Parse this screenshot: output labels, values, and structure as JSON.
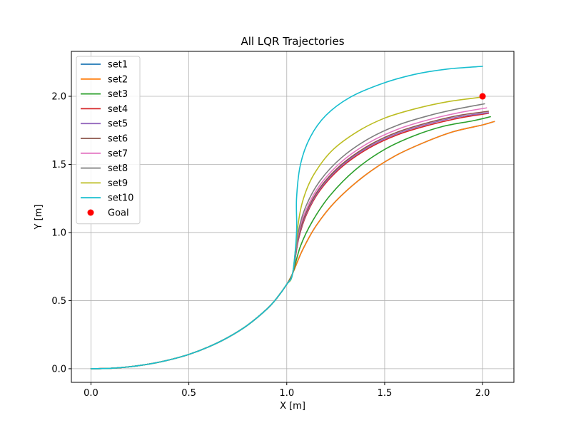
{
  "chart_data": {
    "type": "line",
    "title": "All LQR Trajectories",
    "xlabel": "X [m]",
    "ylabel": "Y [m]",
    "xlim": [
      -0.1,
      2.16
    ],
    "ylim": [
      -0.1,
      2.33
    ],
    "xticks": [
      0.0,
      0.5,
      1.0,
      1.5,
      2.0
    ],
    "xtick_labels": [
      "0.0",
      "0.5",
      "1.0",
      "1.5",
      "2.0"
    ],
    "yticks": [
      0.0,
      0.5,
      1.0,
      1.5,
      2.0
    ],
    "ytick_labels": [
      "0.0",
      "0.5",
      "1.0",
      "1.5",
      "2.0"
    ],
    "grid": true,
    "legend_position": "top-left",
    "common_path": {
      "x": [
        0.0,
        0.1,
        0.2,
        0.3,
        0.4,
        0.5,
        0.6,
        0.7,
        0.8,
        0.9,
        0.95,
        1.0
      ],
      "y": [
        0.0,
        0.003,
        0.015,
        0.035,
        0.065,
        0.105,
        0.16,
        0.23,
        0.32,
        0.44,
        0.52,
        0.62
      ]
    },
    "series": [
      {
        "name": "set1",
        "color": "#1f77b4",
        "x": [
          1.03,
          1.08,
          1.15,
          1.25,
          1.4,
          1.55,
          1.7,
          1.85,
          2.0,
          2.06
        ],
        "y": [
          0.7,
          0.87,
          1.05,
          1.23,
          1.42,
          1.56,
          1.66,
          1.74,
          1.79,
          1.815
        ]
      },
      {
        "name": "set2",
        "color": "#ff7f0e",
        "x": [
          1.03,
          1.08,
          1.15,
          1.25,
          1.4,
          1.55,
          1.7,
          1.85,
          2.0,
          2.06
        ],
        "y": [
          0.7,
          0.87,
          1.05,
          1.23,
          1.42,
          1.56,
          1.66,
          1.74,
          1.79,
          1.815
        ]
      },
      {
        "name": "set3",
        "color": "#2ca02c",
        "x": [
          1.03,
          1.07,
          1.13,
          1.22,
          1.35,
          1.5,
          1.65,
          1.8,
          1.95,
          2.04
        ],
        "y": [
          0.7,
          0.9,
          1.08,
          1.27,
          1.46,
          1.61,
          1.71,
          1.78,
          1.82,
          1.85
        ]
      },
      {
        "name": "set4",
        "color": "#d62728",
        "x": [
          1.03,
          1.06,
          1.1,
          1.17,
          1.28,
          1.42,
          1.57,
          1.73,
          1.88,
          2.03
        ],
        "y": [
          0.7,
          0.95,
          1.13,
          1.31,
          1.48,
          1.62,
          1.72,
          1.79,
          1.84,
          1.875
        ]
      },
      {
        "name": "set5",
        "color": "#9467bd",
        "x": [
          1.03,
          1.06,
          1.1,
          1.17,
          1.28,
          1.42,
          1.57,
          1.73,
          1.88,
          2.03
        ],
        "y": [
          0.7,
          0.96,
          1.14,
          1.32,
          1.49,
          1.63,
          1.73,
          1.8,
          1.85,
          1.88
        ]
      },
      {
        "name": "set6",
        "color": "#8c564b",
        "x": [
          1.03,
          1.06,
          1.1,
          1.17,
          1.28,
          1.42,
          1.57,
          1.73,
          1.88,
          2.03
        ],
        "y": [
          0.7,
          0.97,
          1.15,
          1.33,
          1.5,
          1.64,
          1.74,
          1.81,
          1.86,
          1.89
        ]
      },
      {
        "name": "set7",
        "color": "#e377c2",
        "x": [
          1.03,
          1.06,
          1.1,
          1.17,
          1.28,
          1.42,
          1.57,
          1.73,
          1.88,
          2.02
        ],
        "y": [
          0.7,
          0.99,
          1.17,
          1.35,
          1.52,
          1.66,
          1.76,
          1.83,
          1.88,
          1.915
        ]
      },
      {
        "name": "set8",
        "color": "#7f7f7f",
        "x": [
          1.03,
          1.06,
          1.1,
          1.17,
          1.28,
          1.42,
          1.57,
          1.73,
          1.88,
          2.01
        ],
        "y": [
          0.7,
          1.01,
          1.2,
          1.38,
          1.55,
          1.69,
          1.79,
          1.86,
          1.91,
          1.945
        ]
      },
      {
        "name": "set9",
        "color": "#bcbd22",
        "x": [
          1.03,
          1.06,
          1.09,
          1.14,
          1.23,
          1.36,
          1.5,
          1.66,
          1.82,
          2.0
        ],
        "y": [
          0.7,
          1.08,
          1.27,
          1.43,
          1.6,
          1.74,
          1.84,
          1.91,
          1.96,
          1.995
        ]
      },
      {
        "name": "set10",
        "color": "#17becf",
        "x": [
          1.03,
          1.05,
          1.05,
          1.07,
          1.12,
          1.2,
          1.32,
          1.48,
          1.65,
          1.82,
          2.0
        ],
        "y": [
          0.7,
          1.0,
          1.25,
          1.5,
          1.7,
          1.86,
          1.99,
          2.09,
          2.16,
          2.2,
          2.22
        ]
      }
    ],
    "goal": {
      "name": "Goal",
      "x": 2.0,
      "y": 2.0,
      "color": "#ff0000"
    }
  }
}
